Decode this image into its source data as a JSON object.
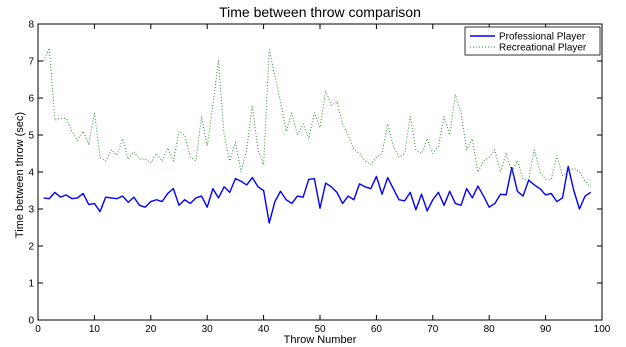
{
  "chart_data": {
    "type": "line",
    "title": "Time between throw comparison",
    "xlabel": "Throw Number",
    "ylabel": "Time between throw (sec)",
    "xlim": [
      0,
      100
    ],
    "ylim": [
      0,
      8
    ],
    "xticks": [
      0,
      10,
      20,
      30,
      40,
      50,
      60,
      70,
      80,
      90,
      100
    ],
    "yticks": [
      0,
      1,
      2,
      3,
      4,
      5,
      6,
      7,
      8
    ],
    "grid": false,
    "legend_position": "top-right",
    "series": [
      {
        "name": "Professional Player",
        "color": "#0000ff",
        "style": "solid",
        "x": [
          1,
          2,
          3,
          4,
          5,
          6,
          7,
          8,
          9,
          10,
          11,
          12,
          13,
          14,
          15,
          16,
          17,
          18,
          19,
          20,
          21,
          22,
          23,
          24,
          25,
          26,
          27,
          28,
          29,
          30,
          31,
          32,
          33,
          34,
          35,
          36,
          37,
          38,
          39,
          40,
          41,
          42,
          43,
          44,
          45,
          46,
          47,
          48,
          49,
          50,
          51,
          52,
          53,
          54,
          55,
          56,
          57,
          58,
          59,
          60,
          61,
          62,
          63,
          64,
          65,
          66,
          67,
          68,
          69,
          70,
          71,
          72,
          73,
          74,
          75,
          76,
          77,
          78,
          79,
          80,
          81,
          82,
          83,
          84,
          85,
          86,
          87,
          88,
          89,
          90,
          91,
          92,
          93,
          94,
          95,
          96,
          97,
          98
        ],
        "y": [
          3.3,
          3.28,
          3.45,
          3.32,
          3.38,
          3.28,
          3.3,
          3.42,
          3.12,
          3.15,
          2.93,
          3.32,
          3.3,
          3.28,
          3.35,
          3.18,
          3.32,
          3.1,
          3.05,
          3.2,
          3.25,
          3.2,
          3.42,
          3.55,
          3.1,
          3.25,
          3.15,
          3.3,
          3.35,
          3.05,
          3.55,
          3.3,
          3.6,
          3.45,
          3.82,
          3.75,
          3.65,
          3.85,
          3.6,
          3.5,
          2.62,
          3.2,
          3.48,
          3.25,
          3.15,
          3.35,
          3.32,
          3.8,
          3.82,
          3.02,
          3.7,
          3.6,
          3.45,
          3.15,
          3.35,
          3.25,
          3.68,
          3.6,
          3.55,
          3.88,
          3.4,
          3.85,
          3.55,
          3.25,
          3.22,
          3.45,
          2.98,
          3.4,
          2.95,
          3.25,
          3.45,
          3.1,
          3.48,
          3.15,
          3.1,
          3.55,
          3.3,
          3.62,
          3.35,
          3.05,
          3.15,
          3.4,
          3.38,
          4.12,
          3.48,
          3.35,
          3.78,
          3.65,
          3.55,
          3.38,
          3.42,
          3.2,
          3.3,
          4.15,
          3.5,
          3.0,
          3.35,
          3.45
        ]
      },
      {
        "name": "Recreational Player",
        "color": "#2e8b2e",
        "style": "dotted",
        "x": [
          1,
          2,
          3,
          4,
          5,
          6,
          7,
          8,
          9,
          10,
          11,
          12,
          13,
          14,
          15,
          16,
          17,
          18,
          19,
          20,
          21,
          22,
          23,
          24,
          25,
          26,
          27,
          28,
          29,
          30,
          31,
          32,
          33,
          34,
          35,
          36,
          37,
          38,
          39,
          40,
          41,
          42,
          43,
          44,
          45,
          46,
          47,
          48,
          49,
          50,
          51,
          52,
          53,
          54,
          55,
          56,
          57,
          58,
          59,
          60,
          61,
          62,
          63,
          64,
          65,
          66,
          67,
          68,
          69,
          70,
          71,
          72,
          73,
          74,
          75,
          76,
          77,
          78,
          79,
          80,
          81,
          82,
          83,
          84,
          85,
          86,
          87,
          88,
          89,
          90,
          91,
          92,
          93,
          94,
          95,
          96,
          97,
          98
        ],
        "y": [
          7.0,
          7.35,
          5.4,
          5.45,
          5.45,
          5.1,
          4.85,
          5.1,
          4.75,
          5.6,
          4.4,
          4.3,
          4.6,
          4.45,
          4.9,
          4.35,
          4.55,
          4.35,
          4.35,
          4.25,
          4.5,
          4.3,
          4.65,
          4.3,
          5.1,
          5.0,
          4.4,
          4.3,
          5.5,
          4.7,
          5.8,
          7.0,
          5.0,
          4.3,
          4.8,
          4.0,
          4.6,
          5.8,
          4.6,
          4.2,
          7.3,
          6.6,
          5.9,
          5.1,
          5.6,
          5.0,
          5.3,
          4.9,
          5.6,
          5.2,
          6.2,
          5.8,
          5.9,
          5.3,
          5.0,
          4.6,
          4.5,
          4.3,
          4.2,
          4.4,
          4.5,
          5.3,
          4.7,
          4.4,
          4.5,
          5.5,
          4.6,
          4.5,
          4.9,
          4.5,
          4.7,
          5.5,
          5.0,
          6.1,
          5.6,
          4.6,
          4.9,
          4.0,
          4.3,
          4.4,
          4.6,
          4.0,
          4.5,
          4.0,
          4.3,
          3.8,
          3.8,
          4.6,
          4.0,
          3.8,
          3.8,
          4.45,
          3.9,
          4.0,
          4.1,
          4.0,
          3.75,
          3.6
        ]
      }
    ]
  }
}
